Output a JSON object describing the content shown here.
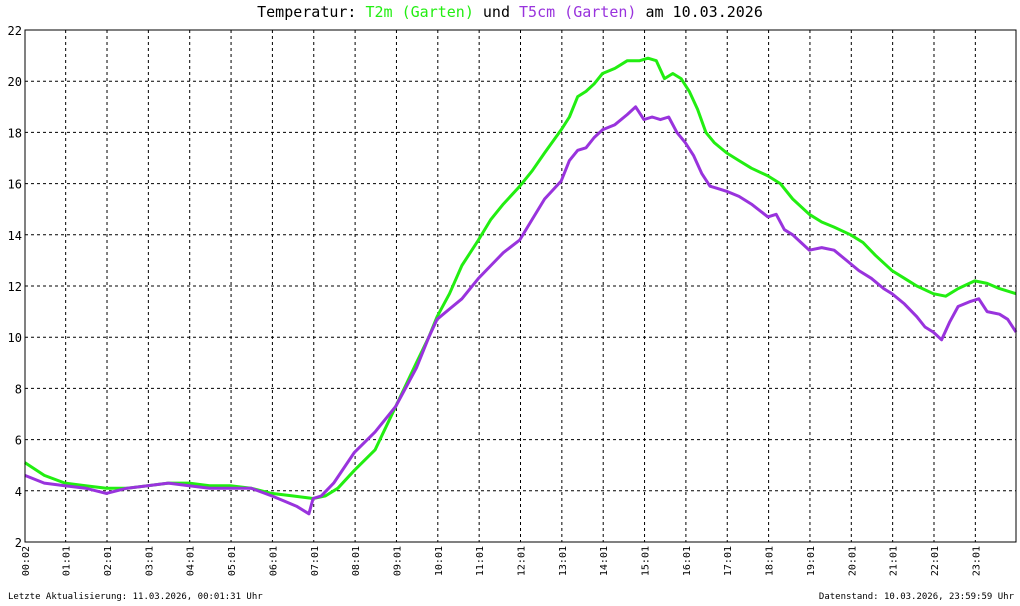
{
  "title": {
    "prefix": "Temperatur: ",
    "series1": "T2m (Garten)",
    "mid": " und ",
    "series2": "T5cm (Garten)",
    "suffix": " am 10.03.2026"
  },
  "footer": {
    "left": "Letzte Aktualisierung: 11.03.2026, 00:01:31 Uhr",
    "right": "Datenstand: 10.03.2026, 23:59:59 Uhr"
  },
  "chart_data": {
    "type": "line",
    "ylim": [
      2,
      22
    ],
    "yticks": [
      2,
      4,
      6,
      8,
      10,
      12,
      14,
      16,
      18,
      20,
      22
    ],
    "xlim": [
      0.0333,
      24.0
    ],
    "xticks": [
      {
        "x": 0.0333,
        "label": "00:02"
      },
      {
        "x": 1.0167,
        "label": "01:01"
      },
      {
        "x": 2.0167,
        "label": "02:01"
      },
      {
        "x": 3.0167,
        "label": "03:01"
      },
      {
        "x": 4.0167,
        "label": "04:01"
      },
      {
        "x": 5.0167,
        "label": "05:01"
      },
      {
        "x": 6.0167,
        "label": "06:01"
      },
      {
        "x": 7.0167,
        "label": "07:01"
      },
      {
        "x": 8.0167,
        "label": "08:01"
      },
      {
        "x": 9.0167,
        "label": "09:01"
      },
      {
        "x": 10.0167,
        "label": "10:01"
      },
      {
        "x": 11.0167,
        "label": "11:01"
      },
      {
        "x": 12.0167,
        "label": "12:01"
      },
      {
        "x": 13.0167,
        "label": "13:01"
      },
      {
        "x": 14.0167,
        "label": "14:01"
      },
      {
        "x": 15.0167,
        "label": "15:01"
      },
      {
        "x": 16.0167,
        "label": "16:01"
      },
      {
        "x": 17.0167,
        "label": "17:01"
      },
      {
        "x": 18.0167,
        "label": "18:01"
      },
      {
        "x": 19.0167,
        "label": "19:01"
      },
      {
        "x": 20.0167,
        "label": "20:01"
      },
      {
        "x": 21.0167,
        "label": "21:01"
      },
      {
        "x": 22.0167,
        "label": "22:01"
      },
      {
        "x": 23.0167,
        "label": "23:01"
      }
    ],
    "grid": true,
    "colors": {
      "T2m": "#22ee11",
      "T5cm": "#9933dd",
      "grid": "#000000"
    },
    "series": [
      {
        "name": "T2m (Garten)",
        "x": [
          0.03,
          0.5,
          1.0,
          1.5,
          2.0,
          2.5,
          3.0,
          3.5,
          4.0,
          4.5,
          5.0,
          5.5,
          6.0,
          6.5,
          7.0,
          7.3,
          7.6,
          8.0,
          8.5,
          9.0,
          9.5,
          9.8,
          10.0,
          10.3,
          10.6,
          11.0,
          11.3,
          11.6,
          12.0,
          12.3,
          12.6,
          13.0,
          13.2,
          13.4,
          13.6,
          13.8,
          14.0,
          14.3,
          14.6,
          14.9,
          15.1,
          15.3,
          15.5,
          15.7,
          15.9,
          16.1,
          16.3,
          16.5,
          16.7,
          17.0,
          17.3,
          17.6,
          18.0,
          18.3,
          18.6,
          19.0,
          19.3,
          19.6,
          20.0,
          20.3,
          20.6,
          21.0,
          21.3,
          21.6,
          22.0,
          22.3,
          22.6,
          23.0,
          23.3,
          23.6,
          24.0
        ],
        "y": [
          5.1,
          4.6,
          4.3,
          4.2,
          4.1,
          4.1,
          4.2,
          4.3,
          4.3,
          4.2,
          4.2,
          4.1,
          3.9,
          3.8,
          3.7,
          3.8,
          4.1,
          4.8,
          5.6,
          7.3,
          9.0,
          10.0,
          10.8,
          11.7,
          12.8,
          13.8,
          14.6,
          15.2,
          15.9,
          16.5,
          17.2,
          18.1,
          18.6,
          19.4,
          19.6,
          19.9,
          20.3,
          20.5,
          20.8,
          20.8,
          20.9,
          20.8,
          20.1,
          20.3,
          20.1,
          19.6,
          18.9,
          18.0,
          17.6,
          17.2,
          16.9,
          16.6,
          16.3,
          16.0,
          15.4,
          14.8,
          14.5,
          14.3,
          14.0,
          13.7,
          13.2,
          12.6,
          12.3,
          12.0,
          11.7,
          11.6,
          11.9,
          12.2,
          12.1,
          11.9,
          11.7
        ]
      },
      {
        "name": "T5cm (Garten)",
        "x": [
          0.03,
          0.5,
          1.0,
          1.5,
          2.0,
          2.5,
          3.0,
          3.5,
          4.0,
          4.5,
          5.0,
          5.5,
          6.0,
          6.3,
          6.6,
          6.9,
          7.0,
          7.2,
          7.5,
          8.0,
          8.5,
          9.0,
          9.5,
          9.8,
          10.0,
          10.3,
          10.6,
          11.0,
          11.3,
          11.6,
          12.0,
          12.3,
          12.6,
          13.0,
          13.2,
          13.4,
          13.6,
          13.8,
          14.0,
          14.3,
          14.6,
          14.8,
          15.0,
          15.2,
          15.4,
          15.6,
          15.8,
          16.0,
          16.2,
          16.4,
          16.6,
          16.8,
          17.0,
          17.3,
          17.6,
          18.0,
          18.2,
          18.4,
          18.6,
          18.8,
          19.0,
          19.3,
          19.6,
          19.9,
          20.2,
          20.5,
          20.8,
          21.0,
          21.3,
          21.6,
          21.8,
          22.0,
          22.2,
          22.4,
          22.6,
          22.9,
          23.1,
          23.3,
          23.6,
          23.8,
          24.0
        ],
        "y": [
          4.6,
          4.3,
          4.2,
          4.1,
          3.9,
          4.1,
          4.2,
          4.3,
          4.2,
          4.1,
          4.1,
          4.1,
          3.8,
          3.6,
          3.4,
          3.1,
          3.7,
          3.8,
          4.3,
          5.5,
          6.3,
          7.3,
          8.8,
          10.0,
          10.7,
          11.1,
          11.5,
          12.3,
          12.8,
          13.3,
          13.8,
          14.6,
          15.4,
          16.1,
          16.9,
          17.3,
          17.4,
          17.8,
          18.1,
          18.3,
          18.7,
          19.0,
          18.5,
          18.6,
          18.5,
          18.6,
          18.0,
          17.6,
          17.1,
          16.4,
          15.9,
          15.8,
          15.7,
          15.5,
          15.2,
          14.7,
          14.8,
          14.2,
          14.0,
          13.7,
          13.4,
          13.5,
          13.4,
          13.0,
          12.6,
          12.3,
          11.9,
          11.7,
          11.3,
          10.8,
          10.4,
          10.2,
          9.9,
          10.6,
          11.2,
          11.4,
          11.5,
          11.0,
          10.9,
          10.7,
          10.2
        ]
      }
    ]
  }
}
